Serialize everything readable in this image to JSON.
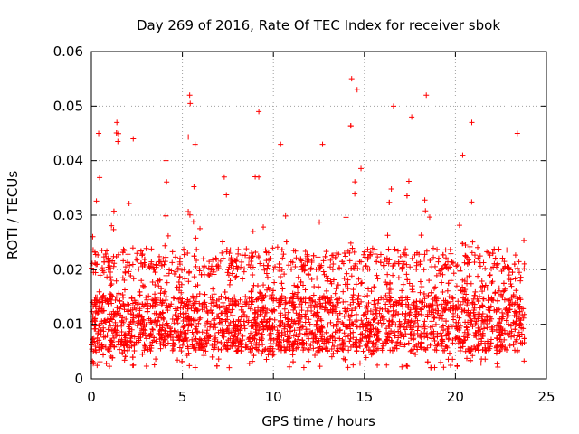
{
  "chart_data": {
    "type": "scatter",
    "title": "Day 269 of 2016, Rate Of TEC Index for receiver sbok",
    "xlabel": "GPS time / hours",
    "ylabel": "ROTI / TECUs",
    "xlim": [
      0,
      25
    ],
    "ylim": [
      0,
      0.06
    ],
    "x_ticks": [
      "0",
      "5",
      "10",
      "15",
      "20",
      "25"
    ],
    "y_ticks": [
      "0",
      "0.01",
      "0.02",
      "0.03",
      "0.04",
      "0.05",
      "0.06"
    ],
    "x_tick_values": [
      0,
      5,
      10,
      15,
      20,
      25
    ],
    "y_tick_values": [
      0,
      0.01,
      0.02,
      0.03,
      0.04,
      0.05,
      0.06
    ],
    "grid": true,
    "marker": "plus",
    "series": [
      {
        "name": "ROTI",
        "color": "#ff0000",
        "x_range": [
          0,
          23.8
        ],
        "typical_range": [
          0.005,
          0.015
        ],
        "min_value": 0.002,
        "max_value": 0.055,
        "peaks": [
          {
            "x": 0.4,
            "y": 0.045
          },
          {
            "x": 1.4,
            "y": 0.047
          },
          {
            "x": 2.3,
            "y": 0.044
          },
          {
            "x": 4.1,
            "y": 0.04
          },
          {
            "x": 5.4,
            "y": 0.052
          },
          {
            "x": 5.7,
            "y": 0.043
          },
          {
            "x": 7.3,
            "y": 0.037
          },
          {
            "x": 9.2,
            "y": 0.049
          },
          {
            "x": 10.4,
            "y": 0.043
          },
          {
            "x": 12.7,
            "y": 0.043
          },
          {
            "x": 14.3,
            "y": 0.055
          },
          {
            "x": 14.6,
            "y": 0.053
          },
          {
            "x": 16.6,
            "y": 0.05
          },
          {
            "x": 17.6,
            "y": 0.048
          },
          {
            "x": 18.4,
            "y": 0.052
          },
          {
            "x": 20.4,
            "y": 0.041
          },
          {
            "x": 20.9,
            "y": 0.047
          },
          {
            "x": 23.4,
            "y": 0.045
          }
        ]
      }
    ]
  }
}
